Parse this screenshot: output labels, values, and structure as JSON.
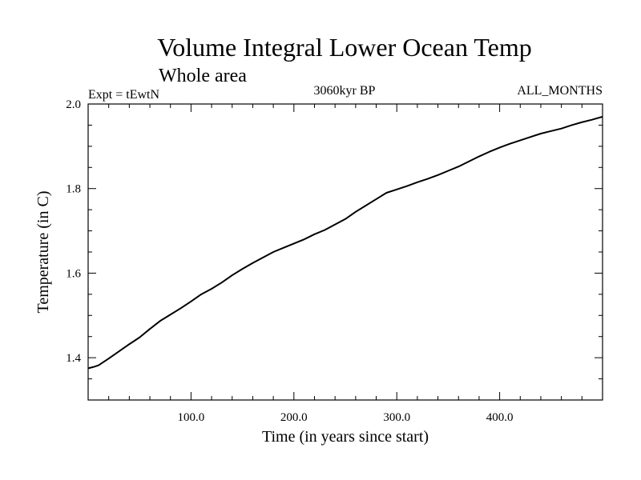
{
  "chart_data": {
    "type": "line",
    "title": "Volume Integral Lower Ocean Temp",
    "subtitle": "Whole area",
    "annotations": {
      "left": "Expt = tEwtN",
      "center": "3060kyr BP",
      "right": "ALL_MONTHS"
    },
    "xlabel": "Time (in years since start)",
    "ylabel": "Temperature (in C)",
    "xlim": [
      0,
      500
    ],
    "ylim": [
      1.3,
      2.0
    ],
    "x_ticks": [
      "100.0",
      "200.0",
      "300.0",
      "400.0"
    ],
    "y_ticks": [
      "1.4",
      "1.6",
      "1.8",
      "2.0"
    ],
    "grid": false,
    "series": [
      {
        "name": "Volume Integral Lower Ocean Temp",
        "x": [
          0,
          5,
          10,
          15,
          20,
          30,
          40,
          50,
          60,
          70,
          80,
          90,
          100,
          110,
          120,
          130,
          140,
          150,
          160,
          170,
          180,
          190,
          200,
          210,
          220,
          230,
          240,
          250,
          260,
          270,
          280,
          290,
          300,
          310,
          320,
          330,
          340,
          350,
          360,
          370,
          380,
          390,
          400,
          410,
          420,
          430,
          440,
          450,
          460,
          470,
          480,
          490,
          500
        ],
        "values": [
          1.375,
          1.378,
          1.382,
          1.39,
          1.398,
          1.415,
          1.432,
          1.448,
          1.468,
          1.487,
          1.502,
          1.517,
          1.533,
          1.55,
          1.563,
          1.578,
          1.595,
          1.61,
          1.624,
          1.637,
          1.65,
          1.66,
          1.67,
          1.68,
          1.692,
          1.702,
          1.715,
          1.728,
          1.745,
          1.76,
          1.775,
          1.79,
          1.798,
          1.806,
          1.815,
          1.823,
          1.832,
          1.842,
          1.852,
          1.864,
          1.876,
          1.887,
          1.897,
          1.906,
          1.914,
          1.922,
          1.93,
          1.936,
          1.942,
          1.95,
          1.957,
          1.963,
          1.97
        ]
      }
    ]
  }
}
